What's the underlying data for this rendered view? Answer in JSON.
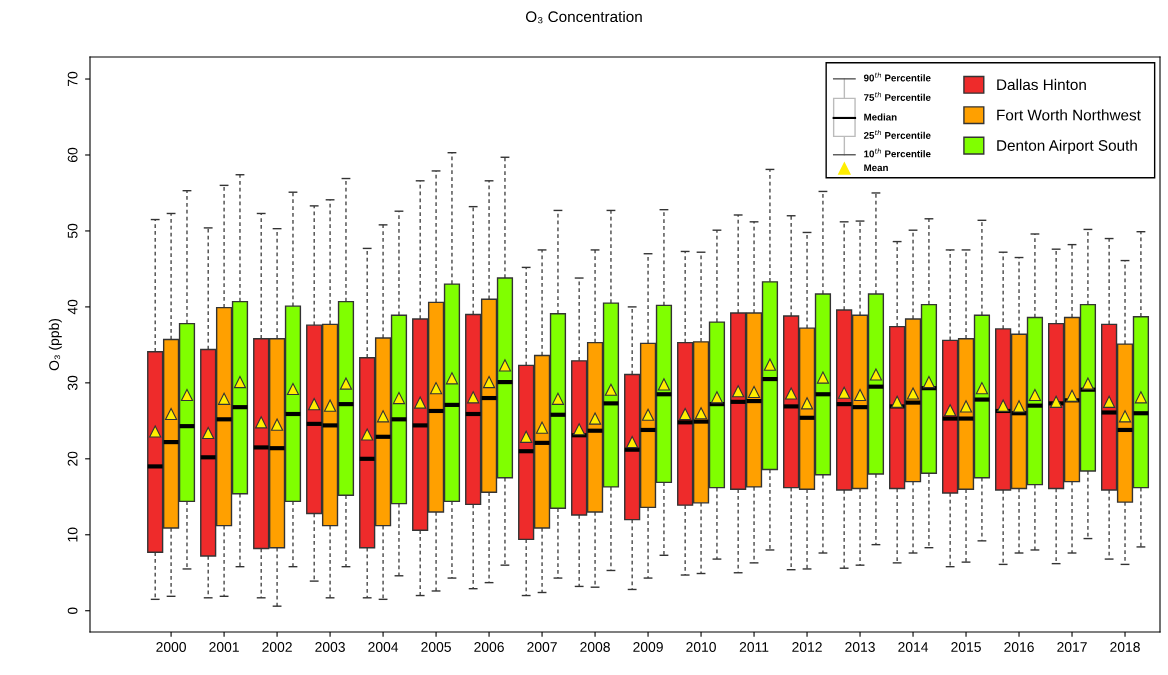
{
  "chart_data": {
    "type": "box",
    "title": "O₃ Concentration",
    "ylabel": "O₃ (ppb)",
    "categories": [
      "2000",
      "2001",
      "2002",
      "2003",
      "2004",
      "2005",
      "2006",
      "2007",
      "2008",
      "2009",
      "2010",
      "2011",
      "2012",
      "2013",
      "2014",
      "2015",
      "2016",
      "2017",
      "2018"
    ],
    "ylim": [
      -2.8,
      72.9
    ],
    "yticks": [
      0,
      10,
      20,
      30,
      40,
      50,
      60,
      70
    ],
    "grid": false,
    "legend": "top right",
    "marker": "triangle",
    "annotations": [
      "90$^{th}$ Percentile",
      "75$^{th}$ Percentile",
      "Median",
      "25$^{th}$ Percentile",
      "10$^{th}$ Percentile",
      "Mean"
    ],
    "series": [
      {
        "name": "Dallas Hinton",
        "color": "#ee2b2b",
        "boxes": [
          {
            "low": 1.5,
            "q1": 7.7,
            "median": 19.0,
            "q3": 34.1,
            "high": 51.5,
            "mean": 23.6
          },
          {
            "low": 1.7,
            "q1": 7.2,
            "median": 20.2,
            "q3": 34.4,
            "high": 50.4,
            "mean": 23.4
          },
          {
            "low": 1.7,
            "q1": 8.2,
            "median": 21.5,
            "q3": 35.8,
            "high": 52.3,
            "mean": 24.8
          },
          {
            "low": 3.9,
            "q1": 12.8,
            "median": 24.6,
            "q3": 37.6,
            "high": 53.3,
            "mean": 27.2
          },
          {
            "low": 1.7,
            "q1": 8.3,
            "median": 20.0,
            "q3": 33.3,
            "high": 47.7,
            "mean": 23.2
          },
          {
            "low": 2.0,
            "q1": 10.6,
            "median": 24.4,
            "q3": 38.4,
            "high": 56.6,
            "mean": 27.4
          },
          {
            "low": 2.9,
            "q1": 14.0,
            "median": 25.9,
            "q3": 39.0,
            "high": 53.2,
            "mean": 28.1
          },
          {
            "low": 2.0,
            "q1": 9.4,
            "median": 21.0,
            "q3": 32.3,
            "high": 45.2,
            "mean": 22.9
          },
          {
            "low": 3.2,
            "q1": 12.6,
            "median": 23.1,
            "q3": 32.9,
            "high": 43.8,
            "mean": 23.9
          },
          {
            "low": 2.8,
            "q1": 12.0,
            "median": 21.2,
            "q3": 31.1,
            "high": 40.0,
            "mean": 22.2
          },
          {
            "low": 4.7,
            "q1": 13.9,
            "median": 24.8,
            "q3": 35.3,
            "high": 47.3,
            "mean": 25.9
          },
          {
            "low": 5.0,
            "q1": 16.0,
            "median": 27.5,
            "q3": 39.2,
            "high": 52.1,
            "mean": 28.9
          },
          {
            "low": 5.4,
            "q1": 16.2,
            "median": 26.9,
            "q3": 38.8,
            "high": 52.0,
            "mean": 28.6
          },
          {
            "low": 5.6,
            "q1": 15.9,
            "median": 27.2,
            "q3": 39.6,
            "high": 51.2,
            "mean": 28.7
          },
          {
            "low": 6.3,
            "q1": 16.1,
            "median": 26.9,
            "q3": 37.4,
            "high": 48.6,
            "mean": 27.5
          },
          {
            "low": 5.8,
            "q1": 15.5,
            "median": 25.3,
            "q3": 35.6,
            "high": 47.5,
            "mean": 26.4
          },
          {
            "low": 6.1,
            "q1": 15.9,
            "median": 26.3,
            "q3": 37.1,
            "high": 47.2,
            "mean": 27.0
          },
          {
            "low": 6.2,
            "q1": 16.1,
            "median": 27.3,
            "q3": 37.8,
            "high": 47.6,
            "mean": 27.5
          },
          {
            "low": 6.8,
            "q1": 15.9,
            "median": 26.1,
            "q3": 37.7,
            "high": 49.0,
            "mean": 27.5
          }
        ]
      },
      {
        "name": "Fort Worth Northwest",
        "color": "#ffa000",
        "boxes": [
          {
            "low": 1.9,
            "q1": 10.9,
            "median": 22.2,
            "q3": 35.7,
            "high": 52.3,
            "mean": 25.9
          },
          {
            "low": 1.9,
            "q1": 11.2,
            "median": 25.2,
            "q3": 39.9,
            "high": 56.0,
            "mean": 27.9
          },
          {
            "low": 0.6,
            "q1": 8.3,
            "median": 21.4,
            "q3": 35.8,
            "high": 50.3,
            "mean": 24.5
          },
          {
            "low": 1.7,
            "q1": 11.2,
            "median": 24.4,
            "q3": 37.7,
            "high": 54.1,
            "mean": 27.0
          },
          {
            "low": 1.5,
            "q1": 11.2,
            "median": 22.9,
            "q3": 35.9,
            "high": 50.8,
            "mean": 25.6
          },
          {
            "low": 2.6,
            "q1": 13.0,
            "median": 26.3,
            "q3": 40.6,
            "high": 57.9,
            "mean": 29.3
          },
          {
            "low": 3.7,
            "q1": 15.6,
            "median": 28.0,
            "q3": 41.0,
            "high": 56.6,
            "mean": 30.1
          },
          {
            "low": 2.4,
            "q1": 10.9,
            "median": 22.1,
            "q3": 33.6,
            "high": 47.5,
            "mean": 24.1
          },
          {
            "low": 3.1,
            "q1": 13.0,
            "median": 23.7,
            "q3": 35.3,
            "high": 47.5,
            "mean": 25.3
          },
          {
            "low": 4.3,
            "q1": 13.6,
            "median": 23.8,
            "q3": 35.2,
            "high": 47.0,
            "mean": 25.8
          },
          {
            "low": 4.9,
            "q1": 14.2,
            "median": 24.9,
            "q3": 35.4,
            "high": 47.2,
            "mean": 26.0
          },
          {
            "low": 6.3,
            "q1": 16.3,
            "median": 27.6,
            "q3": 39.2,
            "high": 51.2,
            "mean": 28.8
          },
          {
            "low": 5.5,
            "q1": 16.0,
            "median": 25.4,
            "q3": 37.2,
            "high": 49.8,
            "mean": 27.3
          },
          {
            "low": 6.0,
            "q1": 16.1,
            "median": 26.8,
            "q3": 38.9,
            "high": 51.3,
            "mean": 28.4
          },
          {
            "low": 7.6,
            "q1": 17.0,
            "median": 27.4,
            "q3": 38.4,
            "high": 50.1,
            "mean": 28.6
          },
          {
            "low": 6.4,
            "q1": 16.0,
            "median": 25.3,
            "q3": 35.8,
            "high": 47.5,
            "mean": 26.9
          },
          {
            "low": 7.6,
            "q1": 16.1,
            "median": 26.0,
            "q3": 36.4,
            "high": 46.5,
            "mean": 26.9
          },
          {
            "low": 7.6,
            "q1": 17.0,
            "median": 27.7,
            "q3": 38.6,
            "high": 48.2,
            "mean": 28.3
          },
          {
            "low": 6.1,
            "q1": 14.3,
            "median": 23.8,
            "q3": 35.1,
            "high": 46.1,
            "mean": 25.6
          }
        ]
      },
      {
        "name": "Denton Airport South",
        "color": "#80ff00",
        "boxes": [
          {
            "low": 5.5,
            "q1": 14.4,
            "median": 24.3,
            "q3": 37.8,
            "high": 55.3,
            "mean": 28.4
          },
          {
            "low": 5.8,
            "q1": 15.4,
            "median": 26.8,
            "q3": 40.7,
            "high": 57.4,
            "mean": 30.1
          },
          {
            "low": 5.8,
            "q1": 14.4,
            "median": 25.9,
            "q3": 40.1,
            "high": 55.1,
            "mean": 29.2
          },
          {
            "low": 5.8,
            "q1": 15.2,
            "median": 27.2,
            "q3": 40.7,
            "high": 56.9,
            "mean": 29.9
          },
          {
            "low": 4.6,
            "q1": 14.1,
            "median": 25.2,
            "q3": 38.9,
            "high": 52.6,
            "mean": 28.0
          },
          {
            "low": 4.3,
            "q1": 14.4,
            "median": 27.1,
            "q3": 43.0,
            "high": 60.3,
            "mean": 30.6
          },
          {
            "low": 6.0,
            "q1": 17.5,
            "median": 30.1,
            "q3": 43.8,
            "high": 59.7,
            "mean": 32.3
          },
          {
            "low": 4.3,
            "q1": 13.5,
            "median": 25.8,
            "q3": 39.1,
            "high": 52.7,
            "mean": 27.9
          },
          {
            "low": 5.3,
            "q1": 16.3,
            "median": 27.3,
            "q3": 40.5,
            "high": 52.7,
            "mean": 29.1
          },
          {
            "low": 7.3,
            "q1": 16.9,
            "median": 28.5,
            "q3": 40.2,
            "high": 52.8,
            "mean": 29.8
          },
          {
            "low": 6.8,
            "q1": 16.2,
            "median": 27.2,
            "q3": 38.0,
            "high": 50.1,
            "mean": 28.1
          },
          {
            "low": 8.0,
            "q1": 18.6,
            "median": 30.5,
            "q3": 43.3,
            "high": 58.1,
            "mean": 32.4
          },
          {
            "low": 7.6,
            "q1": 17.9,
            "median": 28.5,
            "q3": 41.7,
            "high": 55.2,
            "mean": 30.7
          },
          {
            "low": 8.7,
            "q1": 18.0,
            "median": 29.5,
            "q3": 41.7,
            "high": 55.0,
            "mean": 31.1
          },
          {
            "low": 8.3,
            "q1": 18.1,
            "median": 29.3,
            "q3": 40.3,
            "high": 51.6,
            "mean": 30.1
          },
          {
            "low": 9.2,
            "q1": 17.5,
            "median": 27.8,
            "q3": 38.9,
            "high": 51.4,
            "mean": 29.3
          },
          {
            "low": 8.0,
            "q1": 16.6,
            "median": 27.0,
            "q3": 38.6,
            "high": 49.6,
            "mean": 28.4
          },
          {
            "low": 9.5,
            "q1": 18.4,
            "median": 29.1,
            "q3": 40.3,
            "high": 50.2,
            "mean": 29.9
          },
          {
            "low": 8.4,
            "q1": 16.2,
            "median": 26.0,
            "q3": 38.7,
            "high": 49.9,
            "mean": 28.1
          }
        ]
      }
    ]
  }
}
